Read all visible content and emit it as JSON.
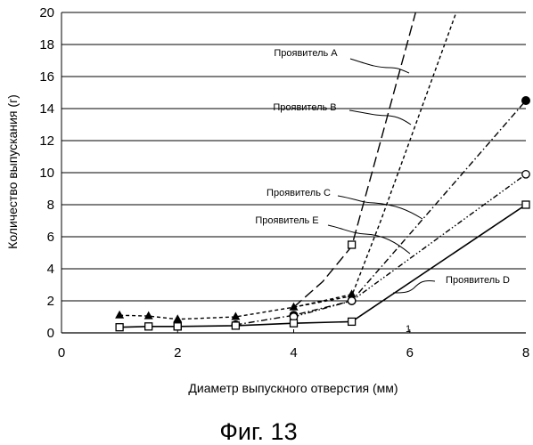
{
  "figure": {
    "caption": "Фиг. 13"
  },
  "chart_data": {
    "type": "line",
    "xlabel": "Диаметр выпускного отверстия (мм)",
    "ylabel": "Количество выпускания (г)",
    "xlim": [
      0,
      8
    ],
    "ylim": [
      0,
      20
    ],
    "x_ticks": [
      0,
      2,
      4,
      6,
      8
    ],
    "y_ticks": [
      0,
      2,
      4,
      6,
      8,
      10,
      12,
      14,
      16,
      18,
      20
    ],
    "x_tick_labels": [
      "0",
      "2",
      "4",
      "6",
      "8"
    ],
    "y_tick_labels": [
      "0",
      "2",
      "4",
      "6",
      "8",
      "10",
      "12",
      "14",
      "16",
      "18",
      "20"
    ],
    "grid": "horizontal",
    "series": [
      {
        "name": "Проявитель А",
        "marker": "none",
        "dash": "long-dash",
        "points": [
          [
            4.0,
            1.6
          ],
          [
            4.5,
            3.2
          ],
          [
            5.0,
            5.4
          ],
          [
            5.5,
            12.0
          ],
          [
            6.1,
            20.0
          ]
        ]
      },
      {
        "name": "Проявитель В",
        "marker": "none",
        "dash": "dashed",
        "points": [
          [
            4.0,
            1.6
          ],
          [
            5.0,
            2.3
          ],
          [
            5.5,
            7.0
          ],
          [
            6.0,
            12.0
          ],
          [
            6.5,
            17.0
          ],
          [
            6.8,
            20.0
          ]
        ]
      },
      {
        "name": "Проявитель С",
        "marker": "filled-circle",
        "dash": "dash-dot",
        "points": [
          [
            3.0,
            0.5
          ],
          [
            4.0,
            1.1
          ],
          [
            5.0,
            2.0
          ],
          [
            8.0,
            14.5
          ]
        ]
      },
      {
        "name": "Проявитель Е",
        "marker": "open-circle",
        "dash": "dash-dot-dot",
        "points": [
          [
            4.0,
            1.0
          ],
          [
            5.0,
            2.0
          ],
          [
            8.0,
            9.9
          ]
        ]
      },
      {
        "name": "Проявитель D",
        "marker": "open-square",
        "dash": "solid",
        "points": [
          [
            1.0,
            0.35
          ],
          [
            1.5,
            0.4
          ],
          [
            2.0,
            0.4
          ],
          [
            3.0,
            0.45
          ],
          [
            4.0,
            0.6
          ],
          [
            5.0,
            0.7
          ],
          [
            8.0,
            8.0
          ]
        ]
      },
      {
        "name": "",
        "marker": "filled-triangle",
        "dash": "dashed",
        "points": [
          [
            1.0,
            1.1
          ],
          [
            1.5,
            1.05
          ],
          [
            2.0,
            0.85
          ],
          [
            3.0,
            1.0
          ],
          [
            4.0,
            1.6
          ],
          [
            5.0,
            2.4
          ]
        ]
      },
      {
        "name": "",
        "marker": "open-square",
        "dash": "none",
        "points": [
          [
            2.0,
            0.4
          ],
          [
            5.0,
            5.5
          ]
        ]
      }
    ],
    "annotations": [
      {
        "text": "Проявитель А",
        "series": "Проявитель А"
      },
      {
        "text": "Проявитель В",
        "series": "Проявитель В"
      },
      {
        "text": "Проявитель С",
        "series": "Проявитель С"
      },
      {
        "text": "Проявитель Е",
        "series": "Проявитель Е"
      },
      {
        "text": "Проявитель D",
        "series": "Проявитель D"
      }
    ],
    "stray_marks": [
      "1"
    ]
  }
}
